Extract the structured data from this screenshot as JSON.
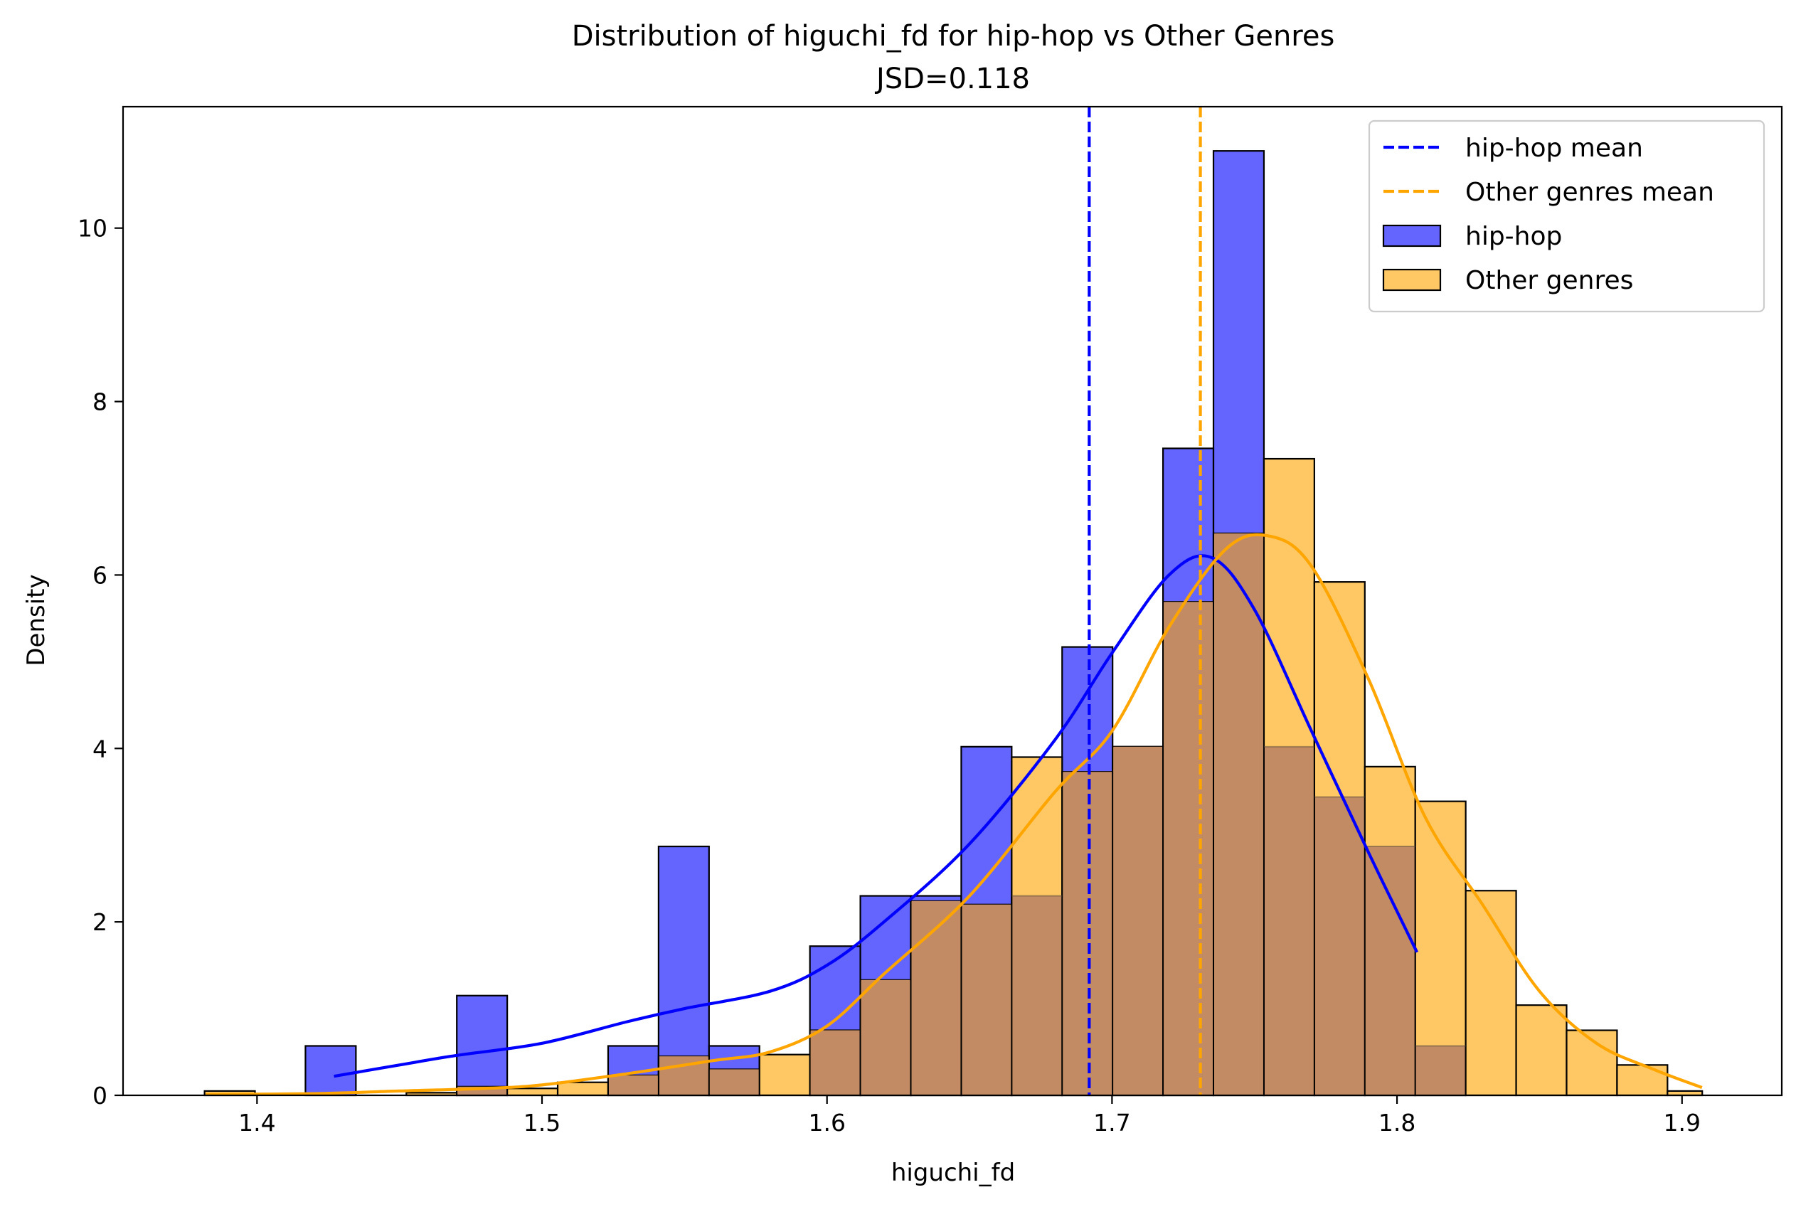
{
  "chart_data": {
    "type": "histogram",
    "title": "Distribution of higuchi_fd for hip-hop vs Other Genres",
    "subtitle": "JSD=0.118",
    "xlabel": "higuchi_fd",
    "ylabel": "Density",
    "xlim": [
      1.353,
      1.935
    ],
    "ylim": [
      0,
      11.4
    ],
    "xticks": [
      "1.4",
      "1.5",
      "1.6",
      "1.7",
      "1.8",
      "1.9"
    ],
    "yticks": [
      "0",
      "2",
      "4",
      "6",
      "8",
      "10"
    ],
    "grid": false,
    "legend_position": "top-right",
    "legend": [
      "hip-hop mean",
      "Other genres mean",
      "hip-hop",
      "Other genres"
    ],
    "colors": {
      "hiphop_fill": "#6464ff",
      "hiphop_line": "#0000ff",
      "other_fill": "#ffc864",
      "other_line": "#ffa500",
      "overlap_fill": "#c38b64"
    },
    "bin_edges": [
      1.3816,
      1.3993,
      1.417,
      1.4347,
      1.4524,
      1.4701,
      1.4878,
      1.5055,
      1.5232,
      1.5409,
      1.5586,
      1.5763,
      1.594,
      1.6117,
      1.6294,
      1.6471,
      1.6648,
      1.6825,
      1.7002,
      1.7179,
      1.7356,
      1.7533,
      1.771,
      1.7887,
      1.8064,
      1.8241,
      1.8418,
      1.8595,
      1.8772,
      1.8949,
      1.9071
    ],
    "series": [
      {
        "name": "hip-hop",
        "values": [
          0,
          0,
          0.57,
          0,
          0,
          1.15,
          0,
          0,
          0.57,
          2.87,
          0.57,
          0,
          1.72,
          2.3,
          2.3,
          4.02,
          2.3,
          5.17,
          4.02,
          7.46,
          10.89,
          4.02,
          3.44,
          2.87,
          0.57,
          0,
          0,
          0,
          0,
          0
        ],
        "mean": 1.692,
        "kde_x": [
          1.427,
          1.45,
          1.47,
          1.5,
          1.53,
          1.55,
          1.58,
          1.6,
          1.62,
          1.65,
          1.68,
          1.7,
          1.72,
          1.735,
          1.75,
          1.77,
          1.79,
          1.807
        ],
        "kde_y": [
          0.22,
          0.35,
          0.46,
          0.6,
          0.85,
          1.0,
          1.2,
          1.5,
          2.0,
          2.9,
          4.1,
          5.1,
          6.0,
          6.2,
          5.6,
          4.2,
          2.8,
          1.65
        ]
      },
      {
        "name": "Other genres",
        "values": [
          0.05,
          0,
          0,
          0,
          0.03,
          0.1,
          0.08,
          0.15,
          0.23,
          0.45,
          0.3,
          0.47,
          0.75,
          1.33,
          2.24,
          2.2,
          3.9,
          3.73,
          4.02,
          5.69,
          6.48,
          7.34,
          5.92,
          3.79,
          3.39,
          2.36,
          1.04,
          0.75,
          0.35,
          0.05
        ],
        "mean": 1.731,
        "kde_x": [
          1.382,
          1.42,
          1.45,
          1.48,
          1.5,
          1.53,
          1.56,
          1.58,
          1.6,
          1.62,
          1.65,
          1.68,
          1.7,
          1.72,
          1.74,
          1.755,
          1.77,
          1.79,
          1.81,
          1.83,
          1.85,
          1.87,
          1.89,
          1.907
        ],
        "kde_y": [
          0.01,
          0.02,
          0.05,
          0.08,
          0.12,
          0.25,
          0.4,
          0.5,
          0.8,
          1.4,
          2.3,
          3.5,
          4.2,
          5.4,
          6.3,
          6.45,
          6.1,
          4.8,
          3.2,
          2.2,
          1.2,
          0.6,
          0.3,
          0.09
        ]
      }
    ]
  }
}
